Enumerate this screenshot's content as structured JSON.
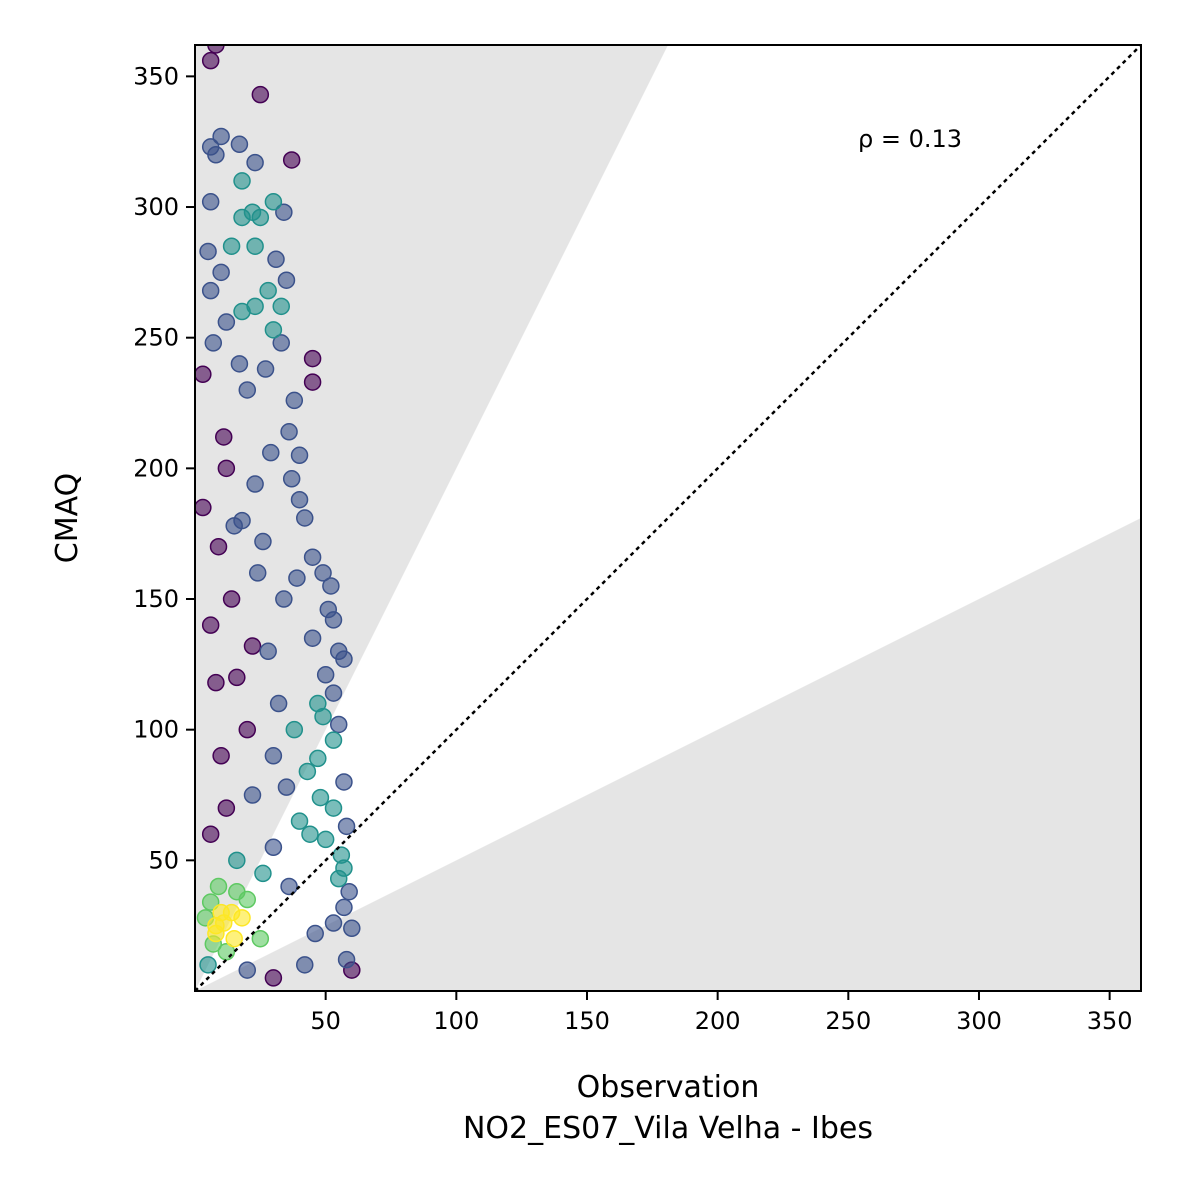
{
  "chart_data": {
    "type": "scatter",
    "title": "",
    "xlabel": "Observation",
    "xlabel2": "NO2_ES07_Vila Velha - Ibes",
    "ylabel": "CMAQ",
    "xlim": [
      0,
      362
    ],
    "ylim": [
      0,
      362
    ],
    "xticks": [
      50,
      100,
      150,
      200,
      250,
      300,
      350
    ],
    "yticks": [
      50,
      100,
      150,
      200,
      250,
      300,
      350
    ],
    "grid": false,
    "annotation": "ρ = 0.13",
    "reference_line": "1:1 dotted",
    "shaded_region": "outside factor-of-2 band (y > 2x and y < x/2)",
    "point_colormap": [
      "#440154",
      "#3b528b",
      "#21918c",
      "#5ec962",
      "#fde725"
    ],
    "points": [
      [
        8,
        362
      ],
      [
        6,
        356
      ],
      [
        25,
        343
      ],
      [
        10,
        327
      ],
      [
        6,
        323
      ],
      [
        17,
        324
      ],
      [
        8,
        320
      ],
      [
        37,
        318
      ],
      [
        23,
        317
      ],
      [
        18,
        310
      ],
      [
        6,
        302
      ],
      [
        30,
        302
      ],
      [
        22,
        298
      ],
      [
        34,
        298
      ],
      [
        18,
        296
      ],
      [
        25,
        296
      ],
      [
        5,
        283
      ],
      [
        14,
        285
      ],
      [
        23,
        285
      ],
      [
        31,
        280
      ],
      [
        10,
        275
      ],
      [
        35,
        272
      ],
      [
        6,
        268
      ],
      [
        28,
        268
      ],
      [
        18,
        260
      ],
      [
        23,
        262
      ],
      [
        33,
        262
      ],
      [
        12,
        256
      ],
      [
        30,
        253
      ],
      [
        33,
        248
      ],
      [
        7,
        248
      ],
      [
        45,
        242
      ],
      [
        17,
        240
      ],
      [
        27,
        238
      ],
      [
        45,
        233
      ],
      [
        3,
        236
      ],
      [
        20,
        230
      ],
      [
        38,
        226
      ],
      [
        36,
        214
      ],
      [
        11,
        212
      ],
      [
        29,
        206
      ],
      [
        40,
        205
      ],
      [
        37,
        196
      ],
      [
        23,
        194
      ],
      [
        40,
        188
      ],
      [
        42,
        181
      ],
      [
        3,
        185
      ],
      [
        15,
        178
      ],
      [
        26,
        172
      ],
      [
        45,
        166
      ],
      [
        39,
        158
      ],
      [
        49,
        160
      ],
      [
        52,
        155
      ],
      [
        34,
        150
      ],
      [
        51,
        146
      ],
      [
        53,
        142
      ],
      [
        45,
        135
      ],
      [
        55,
        130
      ],
      [
        57,
        127
      ],
      [
        22,
        132
      ],
      [
        50,
        121
      ],
      [
        53,
        114
      ],
      [
        47,
        110
      ],
      [
        49,
        105
      ],
      [
        55,
        102
      ],
      [
        8,
        118
      ],
      [
        53,
        96
      ],
      [
        47,
        89
      ],
      [
        43,
        84
      ],
      [
        57,
        80
      ],
      [
        48,
        74
      ],
      [
        35,
        78
      ],
      [
        53,
        70
      ],
      [
        40,
        65
      ],
      [
        58,
        63
      ],
      [
        50,
        58
      ],
      [
        56,
        52
      ],
      [
        30,
        55
      ],
      [
        57,
        47
      ],
      [
        55,
        43
      ],
      [
        59,
        38
      ],
      [
        57,
        32
      ],
      [
        53,
        26
      ],
      [
        60,
        24
      ],
      [
        46,
        22
      ],
      [
        58,
        12
      ],
      [
        60,
        8
      ],
      [
        42,
        10
      ],
      [
        30,
        5
      ],
      [
        20,
        8
      ],
      [
        14,
        150
      ],
      [
        9,
        170
      ],
      [
        12,
        200
      ],
      [
        18,
        180
      ],
      [
        24,
        160
      ],
      [
        6,
        140
      ],
      [
        16,
        120
      ],
      [
        28,
        130
      ],
      [
        20,
        100
      ],
      [
        10,
        90
      ],
      [
        32,
        110
      ],
      [
        38,
        100
      ],
      [
        12,
        70
      ],
      [
        22,
        75
      ],
      [
        30,
        90
      ],
      [
        44,
        60
      ],
      [
        6,
        60
      ],
      [
        16,
        50
      ],
      [
        26,
        45
      ],
      [
        36,
        40
      ],
      [
        10,
        30
      ],
      [
        20,
        35
      ],
      [
        8,
        25
      ],
      [
        15,
        20
      ],
      [
        12,
        15
      ],
      [
        25,
        20
      ],
      [
        5,
        10
      ],
      [
        8,
        22
      ],
      [
        11,
        26
      ],
      [
        14,
        30
      ],
      [
        6,
        34
      ],
      [
        9,
        40
      ],
      [
        18,
        28
      ],
      [
        7,
        18
      ],
      [
        4,
        28
      ],
      [
        16,
        38
      ]
    ]
  }
}
